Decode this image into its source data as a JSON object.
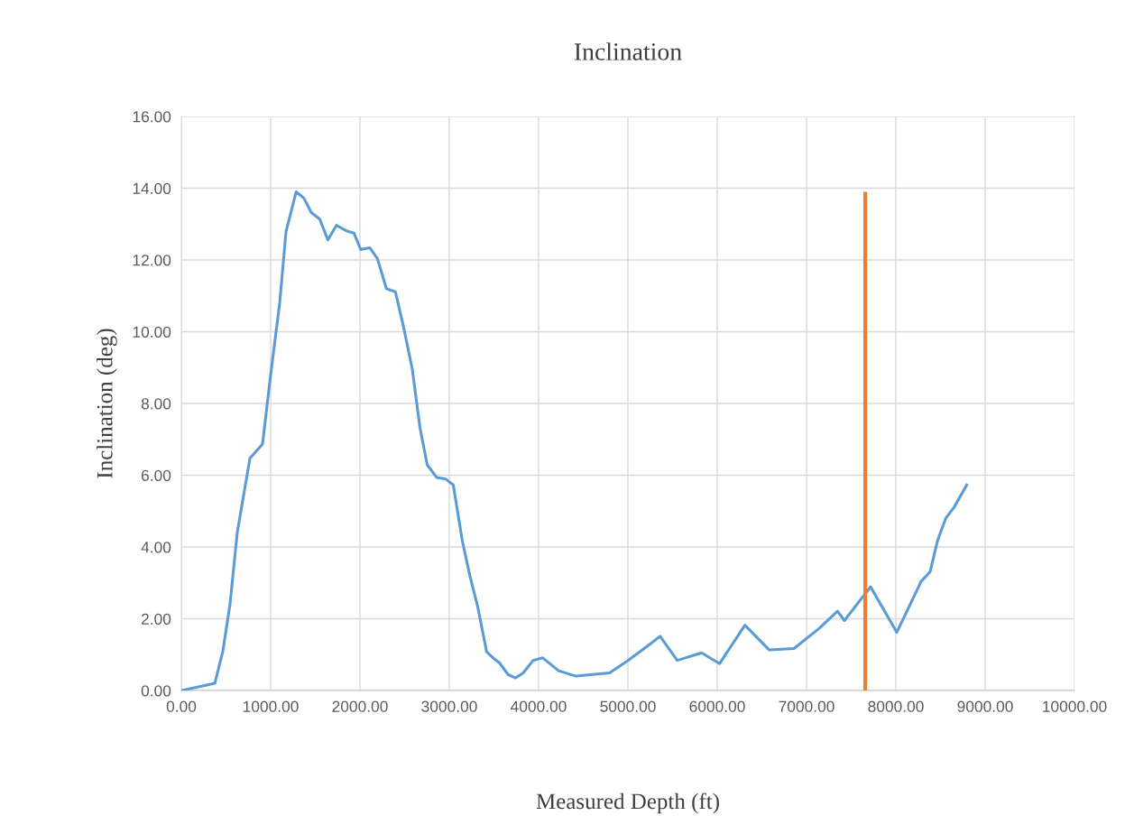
{
  "chart_data": {
    "type": "line",
    "title": "Inclination",
    "xlabel": "Measured Depth (ft)",
    "ylabel": "Inclination (deg)",
    "series": [
      {
        "color": "#5b9bd5",
        "x": [
          0,
          375,
          465,
          545,
          626,
          768,
          909,
          1000,
          1101,
          1172,
          1286,
          1373,
          1455,
          1549,
          1641,
          1738,
          1847,
          1933,
          2008,
          2109,
          2195,
          2296,
          2397,
          2484,
          2585,
          2671,
          2753,
          2858,
          2963,
          3045,
          3146,
          3231,
          3317,
          3418,
          3494,
          3559,
          3660,
          3744,
          3828,
          3939,
          4047,
          4225,
          4417,
          4795,
          4990,
          5209,
          5360,
          5552,
          5825,
          6027,
          6310,
          6583,
          6859,
          7145,
          7347,
          7424,
          7626,
          7717,
          8010,
          8283,
          8384,
          8468,
          8559,
          8653,
          8801
        ],
        "values": [
          0,
          0.2,
          1.1,
          2.4,
          4.4,
          6.47,
          6.87,
          8.8,
          10.8,
          12.79,
          13.9,
          13.72,
          13.32,
          13.14,
          12.56,
          12.97,
          12.81,
          12.75,
          12.29,
          12.34,
          12.04,
          11.2,
          11.11,
          10.18,
          8.97,
          7.34,
          6.29,
          5.94,
          5.89,
          5.73,
          4.17,
          3.19,
          2.35,
          1.08,
          0.9,
          0.78,
          0.44,
          0.35,
          0.49,
          0.84,
          0.91,
          0.55,
          0.4,
          0.49,
          0.82,
          1.22,
          1.51,
          0.84,
          1.05,
          0.75,
          1.82,
          1.13,
          1.17,
          1.74,
          2.21,
          1.95,
          2.6,
          2.89,
          1.62,
          3.04,
          3.31,
          4.19,
          4.8,
          5.11,
          5.76
        ]
      },
      {
        "color": "#ed7d31",
        "x": [
          7657,
          7657
        ],
        "values": [
          0,
          13.9
        ]
      }
    ],
    "xlim": [
      0,
      10000
    ],
    "xticks": [
      {
        "value": 0,
        "label": "0.00"
      },
      {
        "value": 1000,
        "label": "1000.00"
      },
      {
        "value": 2000,
        "label": "2000.00"
      },
      {
        "value": 3000,
        "label": "3000.00"
      },
      {
        "value": 4000,
        "label": "4000.00"
      },
      {
        "value": 5000,
        "label": "5000.00"
      },
      {
        "value": 6000,
        "label": "6000.00"
      },
      {
        "value": 7000,
        "label": "7000.00"
      },
      {
        "value": 8000,
        "label": "8000.00"
      },
      {
        "value": 9000,
        "label": "9000.00"
      },
      {
        "value": 10000,
        "label": "10000.00"
      }
    ],
    "ylim": [
      0,
      16
    ],
    "yticks": [
      {
        "value": 0,
        "label": "0.00"
      },
      {
        "value": 2,
        "label": "2.00"
      },
      {
        "value": 4,
        "label": "4.00"
      },
      {
        "value": 6,
        "label": "6.00"
      },
      {
        "value": 8,
        "label": "8.00"
      },
      {
        "value": 10,
        "label": "10.00"
      },
      {
        "value": 12,
        "label": "12.00"
      },
      {
        "value": 14,
        "label": "14.00"
      },
      {
        "value": 16,
        "label": "16.00"
      }
    ],
    "grid": true
  }
}
